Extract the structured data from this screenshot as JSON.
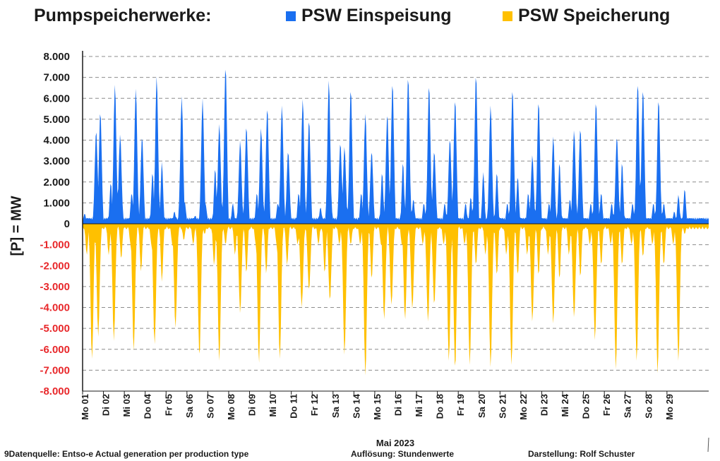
{
  "title": "Pumpspeicherwerke:",
  "legend": [
    {
      "label": "PSW Einspeisung",
      "color": "#1a6ff0"
    },
    {
      "label": "PSW Speicherung",
      "color": "#ffc000"
    }
  ],
  "footer": {
    "source": "9Datenquelle: Entso-e  Actual generation per production type",
    "resolution": "Auflösung: Stundenwerte",
    "author": "Darstellung:  Rolf Schuster"
  },
  "chart_data": {
    "type": "area",
    "xlabel": "Mai 2023",
    "ylabel": "[P]  = MW",
    "ylim": [
      -8000,
      8000
    ],
    "yticks": [
      8000,
      7000,
      6000,
      5000,
      4000,
      3000,
      2000,
      1000,
      0,
      -1000,
      -2000,
      -3000,
      -4000,
      -5000,
      -6000,
      -7000,
      -8000
    ],
    "ytick_labels": [
      "8.000",
      "7.000",
      "6.000",
      "5.000",
      "4.000",
      "3.000",
      "2.000",
      "1.000",
      "0",
      "-1.000",
      "-2.000",
      "-3.000",
      "-4.000",
      "-5.000",
      "-6.000",
      "-7.000",
      "-8.000"
    ],
    "ytick_colors": {
      "positive": "#1a1a1a",
      "negative": "#e8282b"
    },
    "grid": true,
    "x_tick_labels": [
      "Mo 01",
      "Di 02",
      "Mi 03",
      "Do 04",
      "Fr 05",
      "Sa 06",
      "So 07",
      "Mo 08",
      "Di 09",
      "Mi 10",
      "Do 11",
      "Fr 12",
      "Sa 13",
      "So 14",
      "Mo 15",
      "Di 16",
      "Mi 17",
      "Do 18",
      "Fr 19",
      "Sa 20",
      "So 21",
      "Mo 22",
      "Di 23",
      "Mi 24",
      "Do 25",
      "Fr 26",
      "Sa 27",
      "So 28",
      "Mo 29"
    ],
    "x_days": 30,
    "resolution_hours": 1,
    "series": [
      {
        "name": "PSW Einspeisung",
        "color": "#1a6ff0",
        "daily_peaks": [
          [
            [
              0.1,
              500
            ],
            [
              0.65,
              4500
            ],
            [
              0.85,
              5400
            ]
          ],
          [
            [
              0.35,
              2000
            ],
            [
              0.55,
              6700
            ],
            [
              0.8,
              4300
            ]
          ],
          [
            [
              0.35,
              1500
            ],
            [
              0.55,
              6500
            ],
            [
              0.85,
              4200
            ]
          ],
          [
            [
              0.35,
              2500
            ],
            [
              0.55,
              7100
            ],
            [
              0.8,
              3000
            ]
          ],
          [
            [
              0.4,
              600
            ],
            [
              0.75,
              6100
            ],
            [
              0.9,
              1000
            ]
          ],
          [
            [
              0.4,
              400
            ],
            [
              0.75,
              6000
            ],
            [
              0.9,
              900
            ]
          ],
          [
            [
              0.35,
              2700
            ],
            [
              0.55,
              4800
            ],
            [
              0.85,
              7600
            ]
          ],
          [
            [
              0.2,
              1000
            ],
            [
              0.55,
              4000
            ],
            [
              0.85,
              4700
            ]
          ],
          [
            [
              0.35,
              1500
            ],
            [
              0.55,
              4600
            ],
            [
              0.85,
              5600
            ]
          ],
          [
            [
              0.35,
              1000
            ],
            [
              0.55,
              5700
            ],
            [
              0.85,
              3500
            ]
          ],
          [
            [
              0.35,
              1500
            ],
            [
              0.55,
              6000
            ],
            [
              0.85,
              5000
            ]
          ],
          [
            [
              0.4,
              800
            ],
            [
              0.8,
              6900
            ],
            [
              0.9,
              1000
            ]
          ],
          [
            [
              0.35,
              3900
            ],
            [
              0.55,
              3700
            ],
            [
              0.85,
              6500
            ]
          ],
          [
            [
              0.35,
              1500
            ],
            [
              0.55,
              5300
            ],
            [
              0.85,
              3500
            ]
          ],
          [
            [
              0.35,
              2500
            ],
            [
              0.6,
              5300
            ],
            [
              0.85,
              6800
            ]
          ],
          [
            [
              0.35,
              3000
            ],
            [
              0.6,
              7100
            ],
            [
              0.85,
              1200
            ]
          ],
          [
            [
              0.35,
              1000
            ],
            [
              0.6,
              6700
            ],
            [
              0.85,
              3500
            ]
          ],
          [
            [
              0.35,
              1000
            ],
            [
              0.6,
              4100
            ],
            [
              0.85,
              6000
            ]
          ],
          [
            [
              0.35,
              1000
            ],
            [
              0.6,
              1300
            ],
            [
              0.85,
              7200
            ]
          ],
          [
            [
              0.2,
              2500
            ],
            [
              0.55,
              5700
            ],
            [
              0.85,
              2500
            ]
          ],
          [
            [
              0.35,
              1000
            ],
            [
              0.6,
              6500
            ],
            [
              0.85,
              2300
            ]
          ],
          [
            [
              0.35,
              1500
            ],
            [
              0.55,
              3300
            ],
            [
              0.85,
              5900
            ]
          ],
          [
            [
              0.35,
              1000
            ],
            [
              0.55,
              4200
            ],
            [
              0.85,
              3000
            ]
          ],
          [
            [
              0.35,
              1200
            ],
            [
              0.55,
              4500
            ],
            [
              0.85,
              4600
            ]
          ],
          [
            [
              0.35,
              1000
            ],
            [
              0.6,
              5900
            ],
            [
              0.85,
              1500
            ]
          ],
          [
            [
              0.35,
              1000
            ],
            [
              0.6,
              4200
            ],
            [
              0.85,
              3000
            ]
          ],
          [
            [
              0.35,
              1000
            ],
            [
              0.6,
              6800
            ],
            [
              0.85,
              6500
            ]
          ],
          [
            [
              0.35,
              1000
            ],
            [
              0.6,
              6000
            ],
            [
              0.85,
              1000
            ]
          ],
          [
            [
              0.35,
              600
            ],
            [
              0.55,
              1400
            ],
            [
              0.85,
              1700
            ]
          ]
        ]
      },
      {
        "name": "PSW Speicherung",
        "color": "#ffc000",
        "daily_troughs": [
          [
            [
              0.2,
              -1500
            ],
            [
              0.45,
              -6500
            ],
            [
              0.75,
              -5400
            ]
          ],
          [
            [
              0.25,
              -1500
            ],
            [
              0.5,
              -5600
            ],
            [
              0.85,
              -1700
            ]
          ],
          [
            [
              0.3,
              -1000
            ],
            [
              0.45,
              -6100
            ],
            [
              0.8,
              -2300
            ]
          ],
          [
            [
              0.3,
              -1000
            ],
            [
              0.45,
              -5800
            ],
            [
              0.8,
              -2800
            ]
          ],
          [
            [
              0.3,
              -1000
            ],
            [
              0.45,
              -5000
            ],
            [
              0.85,
              -800
            ]
          ],
          [
            [
              0.3,
              -1000
            ],
            [
              0.6,
              -6400
            ],
            [
              0.85,
              -500
            ]
          ],
          [
            [
              0.3,
              -2000
            ],
            [
              0.55,
              -6600
            ],
            [
              0.85,
              -1000
            ]
          ],
          [
            [
              0.3,
              -1500
            ],
            [
              0.55,
              -4300
            ],
            [
              0.85,
              -2400
            ]
          ],
          [
            [
              0.3,
              -1000
            ],
            [
              0.45,
              -6700
            ],
            [
              0.8,
              -2400
            ]
          ],
          [
            [
              0.3,
              -1000
            ],
            [
              0.45,
              -6500
            ],
            [
              0.8,
              -2000
            ]
          ],
          [
            [
              0.3,
              -1000
            ],
            [
              0.5,
              -4000
            ],
            [
              0.85,
              -3200
            ]
          ],
          [
            [
              0.3,
              -1000
            ],
            [
              0.6,
              -2400
            ],
            [
              0.85,
              -3700
            ]
          ],
          [
            [
              0.3,
              -1000
            ],
            [
              0.55,
              -6300
            ],
            [
              0.85,
              -1000
            ]
          ],
          [
            [
              0.3,
              -1000
            ],
            [
              0.55,
              -7300
            ],
            [
              0.85,
              -2700
            ]
          ],
          [
            [
              0.3,
              -1000
            ],
            [
              0.45,
              -4600
            ],
            [
              0.8,
              -3900
            ]
          ],
          [
            [
              0.3,
              -1000
            ],
            [
              0.45,
              -4600
            ],
            [
              0.8,
              -4100
            ]
          ],
          [
            [
              0.3,
              -1000
            ],
            [
              0.55,
              -4700
            ],
            [
              0.85,
              -3900
            ]
          ],
          [
            [
              0.3,
              -1000
            ],
            [
              0.55,
              -6600
            ],
            [
              0.85,
              -7000
            ]
          ],
          [
            [
              0.3,
              -1000
            ],
            [
              0.55,
              -6800
            ],
            [
              0.85,
              -2000
            ]
          ],
          [
            [
              0.3,
              -1500
            ],
            [
              0.55,
              -6900
            ],
            [
              0.85,
              -2500
            ]
          ],
          [
            [
              0.3,
              -1500
            ],
            [
              0.55,
              -6800
            ],
            [
              0.85,
              -2500
            ]
          ],
          [
            [
              0.3,
              -1500
            ],
            [
              0.55,
              -4700
            ],
            [
              0.85,
              -2500
            ]
          ],
          [
            [
              0.3,
              -1500
            ],
            [
              0.55,
              -4800
            ],
            [
              0.85,
              -2700
            ]
          ],
          [
            [
              0.3,
              -1500
            ],
            [
              0.55,
              -4500
            ],
            [
              0.85,
              -2600
            ]
          ],
          [
            [
              0.3,
              -1000
            ],
            [
              0.55,
              -5600
            ],
            [
              0.85,
              -2000
            ]
          ],
          [
            [
              0.3,
              -1000
            ],
            [
              0.55,
              -7000
            ],
            [
              0.85,
              -2000
            ]
          ],
          [
            [
              0.3,
              -1000
            ],
            [
              0.55,
              -6600
            ],
            [
              0.85,
              -1600
            ]
          ],
          [
            [
              0.3,
              -1000
            ],
            [
              0.55,
              -7200
            ],
            [
              0.85,
              -2000
            ]
          ],
          [
            [
              0.3,
              -1000
            ],
            [
              0.55,
              -6600
            ],
            [
              0.85,
              -500
            ]
          ]
        ]
      }
    ]
  }
}
